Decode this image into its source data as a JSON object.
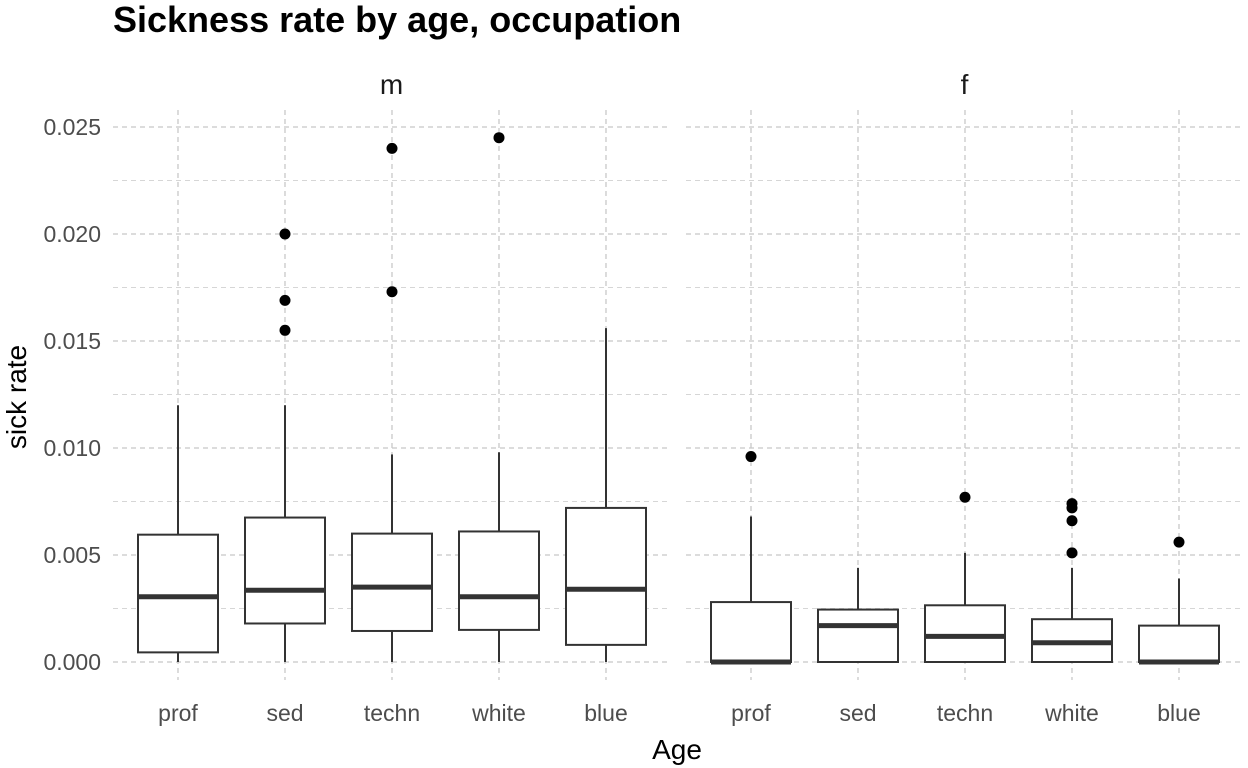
{
  "chart_data": {
    "type": "boxplot",
    "title": "Sickness rate by age, occupation",
    "xlabel": "Age",
    "ylabel": "sick rate",
    "ylim": [
      -0.0015,
      0.0258
    ],
    "yticks": [
      0.0,
      0.005,
      0.01,
      0.015,
      0.02,
      0.025
    ],
    "ytick_labels": [
      "0.000",
      "0.005",
      "0.010",
      "0.015",
      "0.020",
      "0.025"
    ],
    "grid": true,
    "categories": [
      "prof",
      "sed",
      "techn",
      "white",
      "blue"
    ],
    "panels": [
      {
        "name": "m",
        "boxes": [
          {
            "category": "prof",
            "min": 0.0,
            "q1": 0.00045,
            "median": 0.00305,
            "q3": 0.00595,
            "max": 0.012,
            "outliers": []
          },
          {
            "category": "sed",
            "min": 0.0,
            "q1": 0.0018,
            "median": 0.00335,
            "q3": 0.00675,
            "max": 0.012,
            "outliers": [
              0.0155,
              0.0169,
              0.02
            ]
          },
          {
            "category": "techn",
            "min": 0.0,
            "q1": 0.00145,
            "median": 0.0035,
            "q3": 0.006,
            "max": 0.0097,
            "outliers": [
              0.0173,
              0.024
            ]
          },
          {
            "category": "white",
            "min": 0.0,
            "q1": 0.0015,
            "median": 0.00305,
            "q3": 0.0061,
            "max": 0.0098,
            "outliers": [
              0.0245
            ]
          },
          {
            "category": "blue",
            "min": 0.0,
            "q1": 0.0008,
            "median": 0.0034,
            "q3": 0.0072,
            "max": 0.0156,
            "outliers": []
          }
        ]
      },
      {
        "name": "f",
        "boxes": [
          {
            "category": "prof",
            "min": 0.0,
            "q1": 0.0,
            "median": 0.0,
            "q3": 0.0028,
            "max": 0.0068,
            "outliers": [
              0.0096
            ]
          },
          {
            "category": "sed",
            "min": 0.0,
            "q1": 0.0,
            "median": 0.0017,
            "q3": 0.00245,
            "max": 0.0044,
            "outliers": []
          },
          {
            "category": "techn",
            "min": 0.0,
            "q1": 0.0,
            "median": 0.0012,
            "q3": 0.00265,
            "max": 0.0051,
            "outliers": [
              0.0077
            ]
          },
          {
            "category": "white",
            "min": 0.0,
            "q1": 0.0,
            "median": 0.0009,
            "q3": 0.002,
            "max": 0.0044,
            "outliers": [
              0.0051,
              0.0066,
              0.0072,
              0.0074
            ]
          },
          {
            "category": "blue",
            "min": 0.0,
            "q1": 0.0,
            "median": 0.0,
            "q3": 0.0017,
            "max": 0.0039,
            "outliers": [
              0.0056
            ]
          }
        ]
      }
    ]
  }
}
